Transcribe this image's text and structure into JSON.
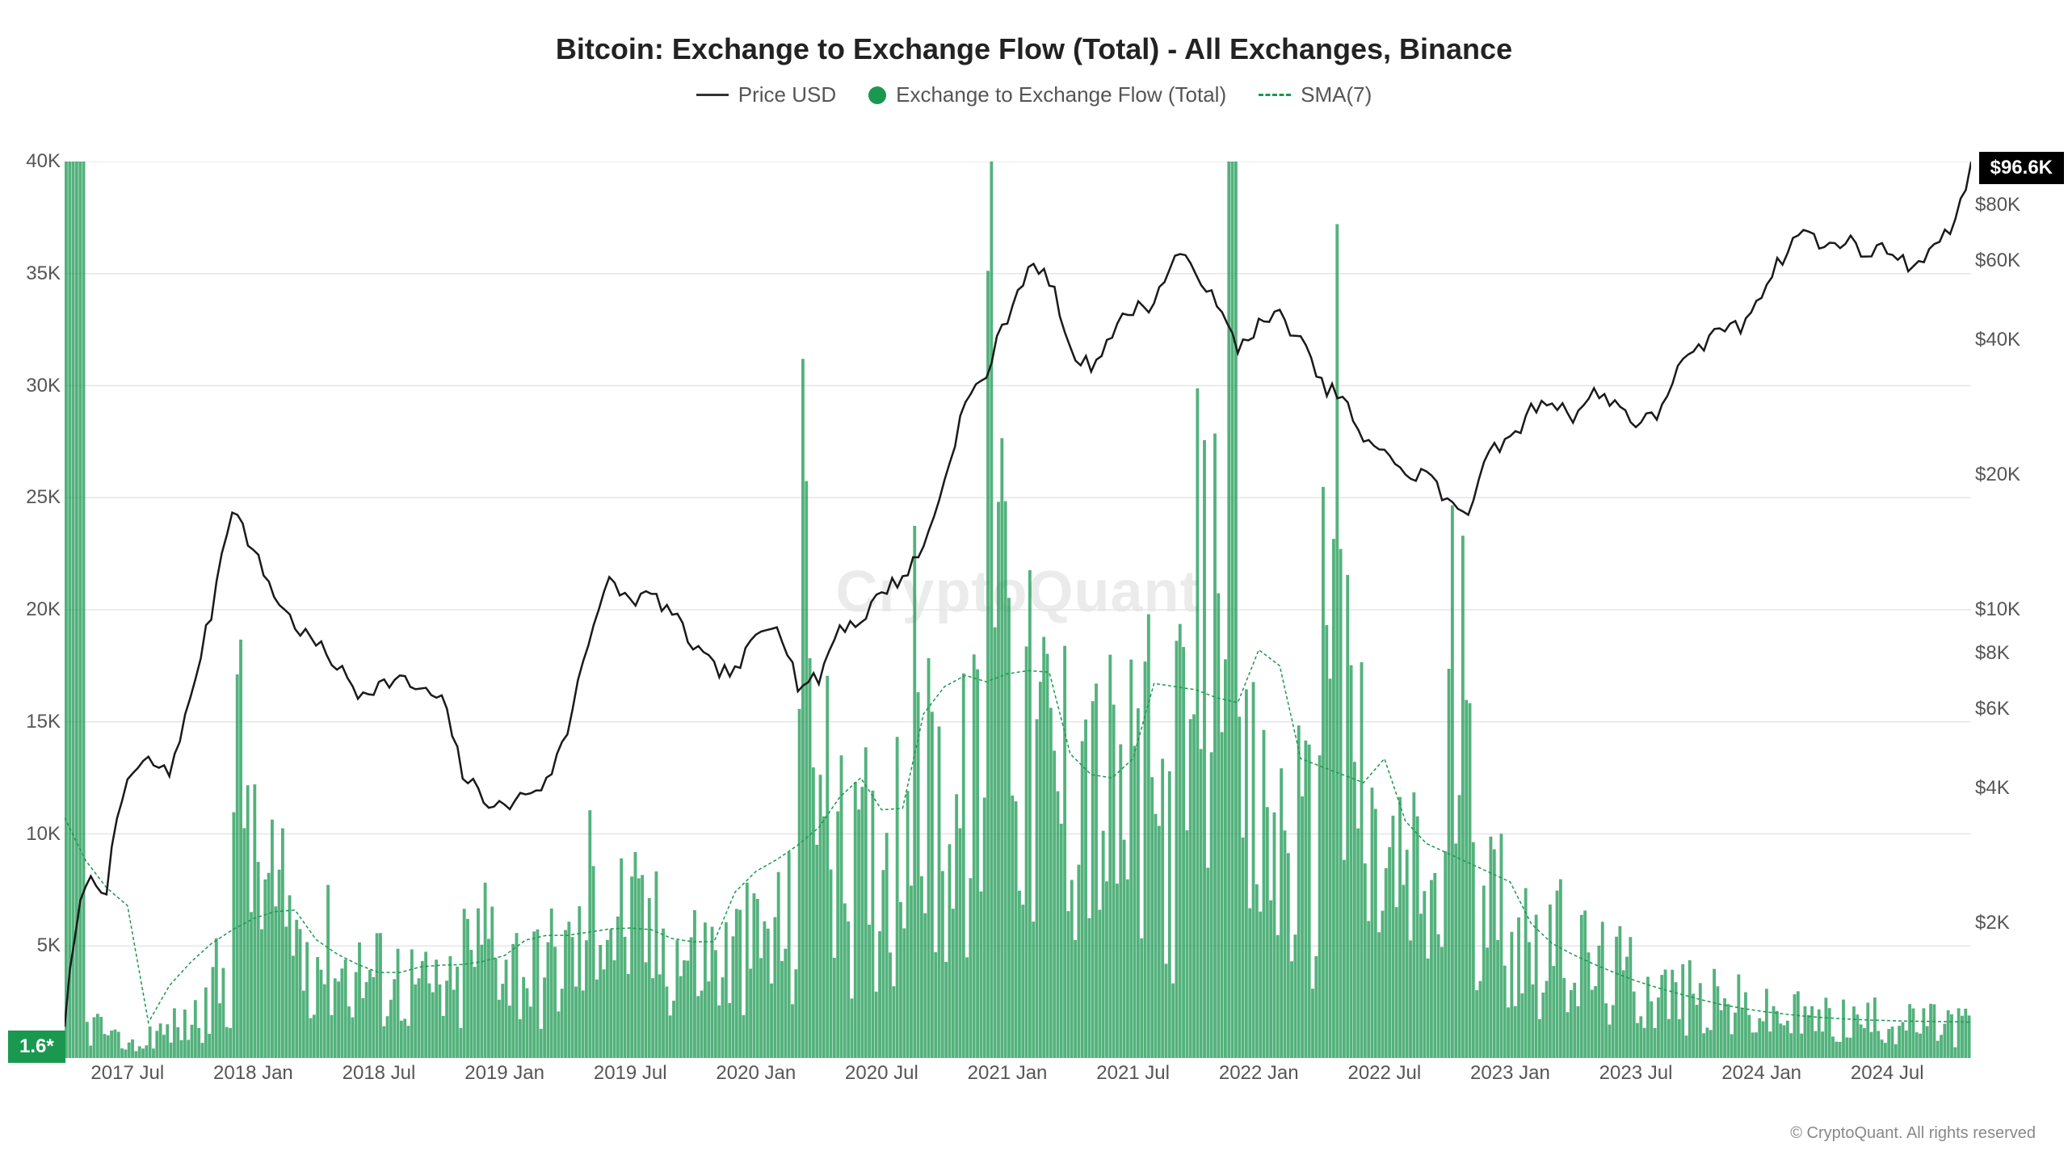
{
  "title": "Bitcoin: Exchange to Exchange Flow (Total) - All Exchanges, Binance",
  "legend": {
    "price": "Price USD",
    "flow": "Exchange to Exchange Flow (Total)",
    "sma": "SMA(7)"
  },
  "watermark": "CryptoQuant",
  "copyright": "© CryptoQuant. All rights reserved",
  "colors": {
    "price_line": "#1a1a1a",
    "flow_fill": "#1a9850",
    "flow_fill_alpha": 0.75,
    "sma_line": "#1a9850",
    "grid": "#e5e5e5",
    "background": "#ffffff",
    "text": "#555555",
    "title_text": "#222222"
  },
  "chart": {
    "type": "combo-line-area",
    "x_axis": {
      "start": "2017-04",
      "end": "2024-11",
      "ticks": [
        "2017 Jul",
        "2018 Jan",
        "2018 Jul",
        "2019 Jan",
        "2019 Jul",
        "2020 Jan",
        "2020 Jul",
        "2021 Jan",
        "2021 Jul",
        "2022 Jan",
        "2022 Jul",
        "2023 Jan",
        "2023 Jul",
        "2024 Jan",
        "2024 Jul"
      ]
    },
    "y_left": {
      "label_suffix": "K",
      "scale": "linear",
      "min": 0,
      "max": 40,
      "ticks": [
        5,
        10,
        15,
        20,
        25,
        30,
        35,
        40
      ],
      "tick_labels": [
        "5K",
        "10K",
        "15K",
        "20K",
        "25K",
        "30K",
        "35K",
        "40K"
      ]
    },
    "y_right": {
      "scale": "log",
      "min": 1000,
      "max": 100000,
      "ticks": [
        2000,
        4000,
        6000,
        8000,
        10000,
        20000,
        40000,
        60000,
        80000
      ],
      "tick_labels": [
        "$2K",
        "$4K",
        "$6K",
        "$8K",
        "$10K",
        "$20K",
        "$40K",
        "$60K",
        "$80K"
      ]
    },
    "price_badge": "$96.6K",
    "flow_badge": "1.6*"
  },
  "series": {
    "price_usd_months": [
      1200,
      2500,
      2400,
      4200,
      4600,
      4300,
      6200,
      9800,
      17000,
      13500,
      10800,
      9200,
      8400,
      7500,
      6500,
      6800,
      7000,
      6600,
      6300,
      4300,
      3800,
      3600,
      3900,
      4100,
      5300,
      8600,
      11500,
      10500,
      10800,
      9800,
      8300,
      7400,
      7200,
      8700,
      9500,
      6800,
      7000,
      9200,
      9400,
      11000,
      11800,
      13700,
      19200,
      28900,
      33500,
      45200,
      58000,
      55000,
      37300,
      35000,
      41500,
      47100,
      48200,
      61300,
      57800,
      47200,
      38400,
      43200,
      45500,
      39700,
      31700,
      29800,
      23300,
      23200,
      19500,
      20500,
      17200,
      16500,
      23100,
      23500,
      28000,
      29200,
      27200,
      30400,
      29200,
      26100,
      27000,
      34500,
      37700,
      42900,
      42500,
      51500,
      61200,
      71000,
      63800,
      67500,
      61800,
      64800,
      58000,
      63200,
      69500,
      96600
    ],
    "flow_total_months_k": [
      40.0,
      1.5,
      0.8,
      0.6,
      1.2,
      1.5,
      2.0,
      3.5,
      13.0,
      8.0,
      6.5,
      5.5,
      5.0,
      4.2,
      4.0,
      3.8,
      3.5,
      3.2,
      3.0,
      5.0,
      6.0,
      4.5,
      4.0,
      4.5,
      5.0,
      7.8,
      6.5,
      6.0,
      5.5,
      5.0,
      4.8,
      4.5,
      5.0,
      5.5,
      6.0,
      21.0,
      11.5,
      8.5,
      9.0,
      10.5,
      15.0,
      12.0,
      11.0,
      12.0,
      38.0,
      17.5,
      14.0,
      13.0,
      14.5,
      12.0,
      11.5,
      12.5,
      11.0,
      13.0,
      19.0,
      38.0,
      11.0,
      10.5,
      10.0,
      9.5,
      29.5,
      14.0,
      9.0,
      8.5,
      8.0,
      7.5,
      17.0,
      10.0,
      7.0,
      6.0,
      5.5,
      5.0,
      4.5,
      4.0,
      3.8,
      3.5,
      3.0,
      2.8,
      2.5,
      2.4,
      2.2,
      2.0,
      1.9,
      1.8,
      1.8,
      1.7,
      1.7,
      1.7,
      1.6,
      1.6,
      1.6,
      1.6
    ]
  },
  "styling": {
    "title_fontsize": 36,
    "legend_fontsize": 26,
    "axis_fontsize": 24,
    "watermark_fontsize": 72,
    "price_line_width": 2.5,
    "flow_bar_opacity": 0.75
  }
}
